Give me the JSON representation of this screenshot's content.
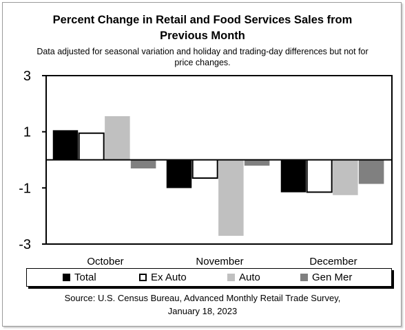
{
  "title_line1": "Percent Change in Retail and Food Services Sales from",
  "title_line2": "Previous Month",
  "subtitle_line1": "Data adjusted for seasonal variation and holiday and trading-day differences but not for",
  "subtitle_line2": "price changes.",
  "source_line1": "Source: U.S. Census Bureau, Advanced Monthly Retail Trade Survey,",
  "source_line2": "January 18, 2023",
  "colors": {
    "total": "#000000",
    "ex_auto": "#ffffff",
    "auto": "#c0c0c0",
    "gen_mer": "#808080"
  },
  "chart_data": {
    "type": "bar",
    "categories": [
      "October",
      "November",
      "December"
    ],
    "series": [
      {
        "name": "Total",
        "values": [
          1.05,
          -1.0,
          -1.15
        ]
      },
      {
        "name": "Ex Auto",
        "values": [
          0.95,
          -0.65,
          -1.15
        ]
      },
      {
        "name": "Auto",
        "values": [
          1.55,
          -2.7,
          -1.25
        ]
      },
      {
        "name": "Gen Mer",
        "values": [
          -0.3,
          -0.2,
          -0.85
        ]
      }
    ],
    "yticks": [
      "3",
      "1",
      "-1",
      "-3"
    ],
    "ylim": [
      -3,
      3
    ],
    "grid": false,
    "legend_position": "bottom"
  }
}
